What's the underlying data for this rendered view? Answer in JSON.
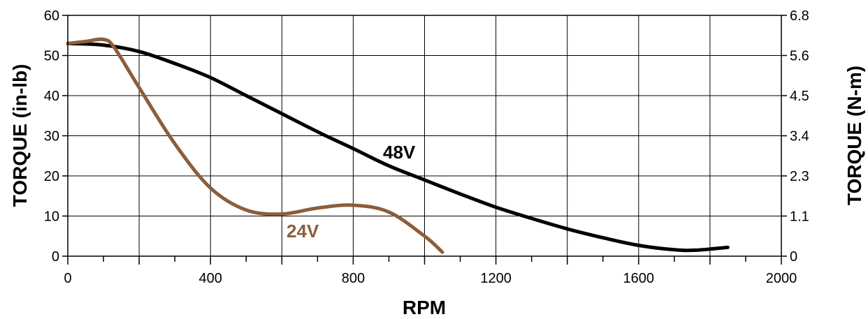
{
  "chart_data": {
    "type": "line",
    "title": "",
    "xlabel": "RPM",
    "ylabel": "TORQUE (in-lb)",
    "ylabel_right": "TORQUE (N-m)",
    "xlim": [
      0,
      2000
    ],
    "ylim": [
      0,
      60
    ],
    "x_ticks": [
      "0",
      "400",
      "800",
      "1200",
      "1600",
      "2000"
    ],
    "y_ticks": [
      "0",
      "10",
      "20",
      "30",
      "40",
      "50",
      "60"
    ],
    "y_right_ticks": [
      "0",
      "1.1",
      "2.3",
      "3.4",
      "4.5",
      "5.6",
      "6.8"
    ],
    "grid": true,
    "series": [
      {
        "name": "48V",
        "color": "#000000",
        "x": [
          0,
          100,
          200,
          300,
          400,
          500,
          600,
          700,
          800,
          900,
          1000,
          1100,
          1200,
          1300,
          1400,
          1500,
          1600,
          1700,
          1760,
          1850
        ],
        "y": [
          53,
          52.6,
          51,
          48,
          44.5,
          40,
          35.5,
          31,
          26.8,
          22.5,
          19,
          15.5,
          12.2,
          9.4,
          6.8,
          4.6,
          2.7,
          1.6,
          1.5,
          2.2
        ]
      },
      {
        "name": "24V",
        "color": "#8b5e3c",
        "x": [
          0,
          50,
          100,
          130,
          200,
          300,
          400,
          500,
          600,
          700,
          800,
          900,
          1000,
          1050
        ],
        "y": [
          53,
          53.5,
          54,
          52,
          42,
          28,
          17,
          11.5,
          10.5,
          12,
          12.7,
          11,
          5,
          1
        ]
      }
    ]
  }
}
